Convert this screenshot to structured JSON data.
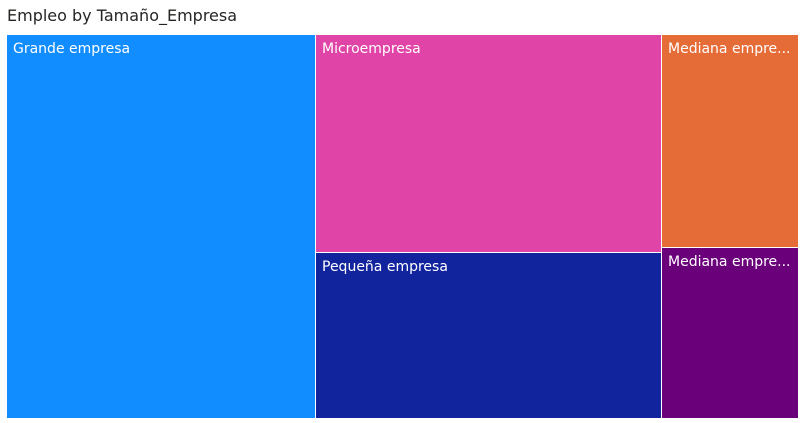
{
  "chart_data": {
    "type": "treemap",
    "title": "Empleo by Tamaño_Empresa",
    "items": [
      {
        "label": "Grande empresa",
        "color": "#118DFF"
      },
      {
        "label": "Microempresa",
        "color": "#E044A7"
      },
      {
        "label": "Pequeña empresa",
        "color": "#12239E"
      },
      {
        "label": "Mediana empre...",
        "color": "#E66C37"
      },
      {
        "label": "Mediana empre...",
        "color": "#6B007B"
      }
    ]
  }
}
